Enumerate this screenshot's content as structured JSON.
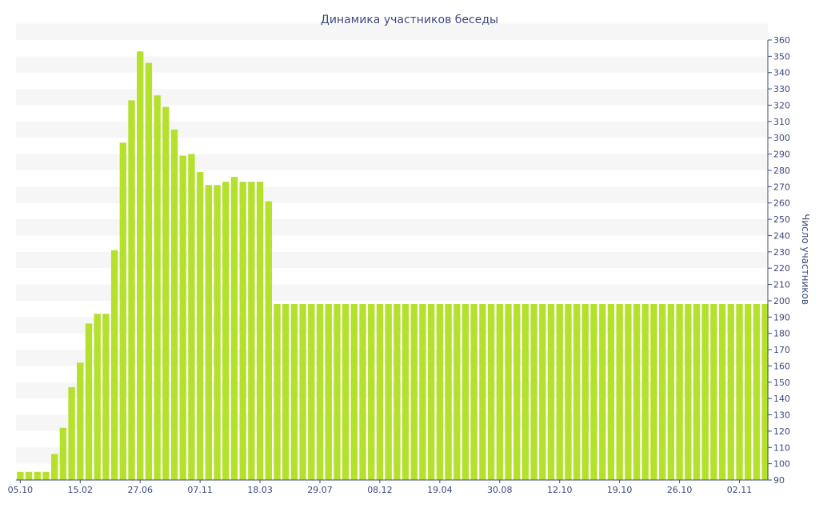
{
  "chart_data": {
    "type": "bar",
    "title": "Динамика участников беседы",
    "xlabel": "",
    "ylabel": "Число участников",
    "ylim": [
      90,
      360
    ],
    "ytick_step": 10,
    "y_axis_side": "right",
    "grid": "horizontal alternating bands",
    "bar_color": "#b5e02c",
    "band_color": "#f6f6f6",
    "text_color": "#3b4a7a",
    "x_tick_labels": [
      {
        "index": 0,
        "label": "05.10"
      },
      {
        "index": 7,
        "label": "15.02"
      },
      {
        "index": 14,
        "label": "27.06"
      },
      {
        "index": 21,
        "label": "07.11"
      },
      {
        "index": 28,
        "label": "18.03"
      },
      {
        "index": 35,
        "label": "29.07"
      },
      {
        "index": 42,
        "label": "08.12"
      },
      {
        "index": 49,
        "label": "19.04"
      },
      {
        "index": 56,
        "label": "30.08"
      },
      {
        "index": 63,
        "label": "12.10"
      },
      {
        "index": 70,
        "label": "19.10"
      },
      {
        "index": 77,
        "label": "26.10"
      },
      {
        "index": 84,
        "label": "02.11"
      }
    ],
    "values": [
      95,
      95,
      95,
      95,
      106,
      122,
      147,
      162,
      186,
      192,
      192,
      231,
      297,
      323,
      353,
      346,
      326,
      319,
      305,
      289,
      290,
      279,
      271,
      271,
      273,
      276,
      273,
      273,
      273,
      261,
      198,
      198,
      198,
      198,
      198,
      198,
      198,
      198,
      198,
      198,
      198,
      198,
      198,
      198,
      198,
      198,
      198,
      198,
      198,
      198,
      198,
      198,
      198,
      198,
      198,
      198,
      198,
      198,
      198,
      198,
      198,
      198,
      198,
      198,
      198,
      198,
      198,
      198,
      198,
      198,
      198,
      198,
      198,
      198,
      198,
      198,
      198,
      198,
      198,
      198,
      198,
      198,
      198,
      198,
      198,
      198,
      198,
      198
    ]
  }
}
